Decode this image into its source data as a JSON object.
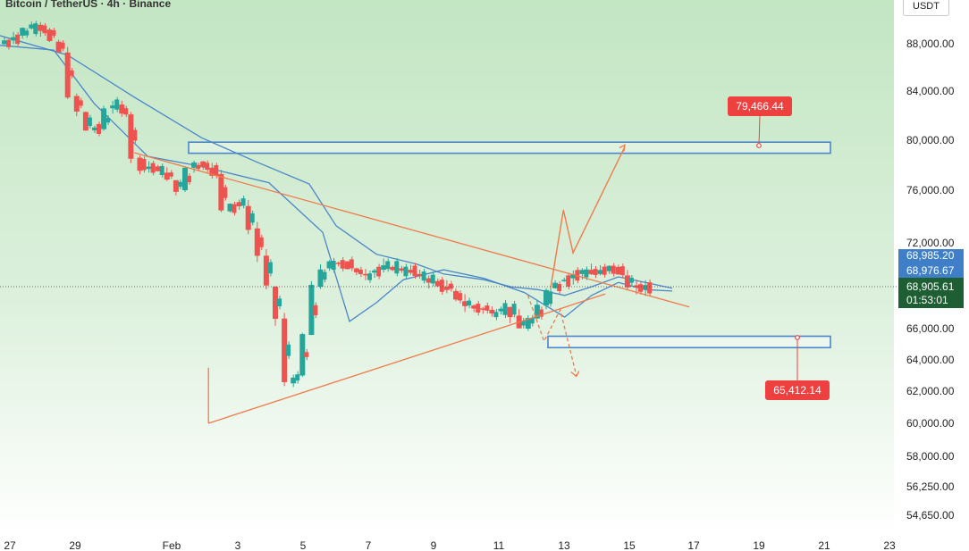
{
  "header": {
    "title": "Bitcoin / TetherUS · 4h · Binance",
    "currency": "USDT"
  },
  "colors": {
    "up": "#26a69a",
    "down": "#ef5350",
    "ma": "#4a86c8",
    "trendline": "#f07a4a",
    "zone": "#4a86c8",
    "target_up": "#ef4040",
    "target_down": "#ef4040",
    "price_label_blue": "#3f7fc8",
    "price_label_green": "#1e5e33"
  },
  "price_labels": {
    "blue_top": "68,985.20",
    "blue_bottom": "68,976.67",
    "last_price": "68,905.61",
    "countdown": "01:53:01"
  },
  "chart_data": {
    "type": "candlestick",
    "title": "Bitcoin / TetherUS · 4h · Binance",
    "y_axis": {
      "ticks": [
        "88,000.00",
        "84,000.00",
        "80,000.00",
        "76,000.00",
        "72,000.00",
        "66,000.00",
        "64,000.00",
        "62,000.00",
        "60,000.00",
        "58,000.00",
        "56,250.00",
        "54,650.00"
      ],
      "scale": "log",
      "range": [
        53500,
        91000
      ]
    },
    "x_axis": {
      "ticks": [
        "27",
        "29",
        "Feb",
        "3",
        "5",
        "7",
        "9",
        "11",
        "13",
        "15",
        "17",
        "19",
        "21",
        "23"
      ]
    },
    "trend": [
      [
        0,
        87900
      ],
      [
        2,
        88200
      ],
      [
        4,
        88600
      ],
      [
        5,
        89200
      ],
      [
        6,
        89500
      ],
      [
        7,
        89100
      ],
      [
        8,
        88100
      ],
      [
        9,
        87200
      ],
      [
        10,
        83600
      ],
      [
        11,
        82300
      ],
      [
        12,
        80800
      ],
      [
        13,
        80900
      ],
      [
        14,
        82600
      ],
      [
        15,
        82900
      ],
      [
        16,
        82100
      ],
      [
        17,
        78600
      ],
      [
        18,
        77700
      ],
      [
        19,
        77900
      ],
      [
        20,
        77400
      ],
      [
        21,
        76800
      ],
      [
        22,
        76000
      ],
      [
        23,
        77800
      ],
      [
        24,
        78300
      ],
      [
        25,
        77800
      ],
      [
        26,
        77300
      ],
      [
        27,
        74400
      ],
      [
        28,
        75100
      ],
      [
        29,
        74800
      ],
      [
        30,
        73100
      ],
      [
        31,
        71100
      ],
      [
        32,
        68900
      ],
      [
        33,
        66700
      ],
      [
        34,
        62500
      ],
      [
        35,
        63000
      ],
      [
        36,
        65600
      ],
      [
        37,
        68900
      ],
      [
        38,
        70200
      ],
      [
        39,
        70600
      ],
      [
        40,
        70700
      ],
      [
        41,
        70200
      ],
      [
        42,
        69800
      ],
      [
        43,
        69900
      ],
      [
        44,
        70100
      ],
      [
        45,
        70300
      ],
      [
        46,
        70200
      ],
      [
        47,
        70100
      ],
      [
        48,
        69800
      ],
      [
        49,
        69500
      ],
      [
        50,
        69300
      ],
      [
        51,
        68900
      ],
      [
        52,
        68600
      ],
      [
        53,
        67900
      ],
      [
        54,
        67600
      ],
      [
        55,
        67400
      ],
      [
        56,
        67300
      ],
      [
        57,
        67200
      ],
      [
        58,
        67500
      ],
      [
        59,
        66900
      ],
      [
        60,
        66000
      ],
      [
        61,
        66700
      ],
      [
        62,
        67600
      ],
      [
        63,
        68800
      ],
      [
        64,
        69300
      ],
      [
        65,
        69500
      ],
      [
        66,
        69800
      ],
      [
        67,
        70100
      ],
      [
        68,
        69800
      ],
      [
        69,
        70000
      ],
      [
        70,
        70300
      ],
      [
        71,
        69700
      ],
      [
        72,
        69000
      ],
      [
        73,
        68700
      ],
      [
        74,
        68900
      ]
    ],
    "ma_series": {
      "name": "",
      "points": [
        [
          0,
          88600
        ],
        [
          10,
          87000
        ],
        [
          20,
          83500
        ],
        [
          30,
          80200
        ],
        [
          38,
          78300
        ],
        [
          46,
          76500
        ],
        [
          50,
          73300
        ],
        [
          56,
          71200
        ],
        [
          62,
          70500
        ],
        [
          66,
          69800
        ],
        [
          72,
          69400
        ],
        [
          76,
          68900
        ],
        [
          80,
          68700
        ],
        [
          84,
          68300
        ],
        [
          88,
          68900
        ],
        [
          92,
          69600
        ],
        [
          96,
          69200
        ],
        [
          100,
          68800
        ]
      ]
    },
    "ma2_series": {
      "name": "",
      "points": [
        [
          0,
          87800
        ],
        [
          8,
          87400
        ],
        [
          14,
          83000
        ],
        [
          22,
          78700
        ],
        [
          30,
          77900
        ],
        [
          40,
          76600
        ],
        [
          48,
          72800
        ],
        [
          52,
          66500
        ],
        [
          56,
          67800
        ],
        [
          60,
          69400
        ],
        [
          66,
          70100
        ],
        [
          72,
          69500
        ],
        [
          78,
          68500
        ],
        [
          84,
          66800
        ],
        [
          88,
          68300
        ],
        [
          92,
          69200
        ],
        [
          96,
          68700
        ],
        [
          100,
          68600
        ]
      ]
    },
    "zones": [
      {
        "name": "resistance-zone",
        "low": 79100,
        "high": 79700
      },
      {
        "name": "support-zone",
        "low": 64900,
        "high": 65400
      }
    ],
    "trendlines": [
      {
        "name": "upper-trendline",
        "from": [
          3.8,
          79000
        ],
        "to": [
          21,
          67500
        ]
      },
      {
        "name": "lower-trendline",
        "from": [
          6.1,
          60000
        ],
        "to": [
          18.4,
          68400
        ]
      },
      {
        "name": "apex-line",
        "from": [
          6.1,
          60000
        ],
        "to": [
          6.1,
          63500
        ]
      }
    ],
    "projection_up": [
      [
        16.7,
        68800
      ],
      [
        17.1,
        74500
      ],
      [
        17.4,
        71300
      ],
      [
        19.0,
        79466
      ]
    ],
    "projection_down": [
      [
        16.0,
        68300
      ],
      [
        16.5,
        65200
      ],
      [
        17.0,
        67300
      ],
      [
        17.5,
        63000
      ]
    ],
    "targets": [
      {
        "name": "upside-target",
        "value": "79,466.44"
      },
      {
        "name": "downside-target",
        "value": "65,412.14"
      }
    ],
    "last_price": 68905.61
  }
}
